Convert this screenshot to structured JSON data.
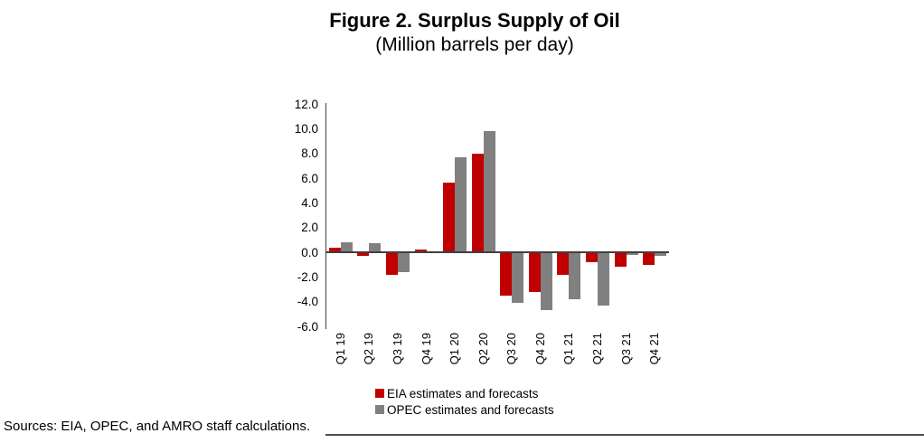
{
  "title": "Figure 2. Surplus Supply of Oil",
  "subtitle": "(Million barrels per day)",
  "source_note": "Sources: EIA, OPEC, and AMRO staff calculations.",
  "colors": {
    "eia": "#c00000",
    "opec": "#808080",
    "axis": "#404040",
    "footer_line": "#4d4d4d"
  },
  "legend": {
    "items": [
      {
        "label": "EIA estimates and forecasts",
        "series_key": "eia"
      },
      {
        "label": "OPEC estimates and forecasts",
        "series_key": "opec"
      }
    ]
  },
  "chart_data": {
    "type": "bar",
    "title": "Figure 2. Surplus Supply of Oil",
    "subtitle": "(Million barrels per day)",
    "categories": [
      "Q1 19",
      "Q2 19",
      "Q3 19",
      "Q4 19",
      "Q1 20",
      "Q2 20",
      "Q3 20",
      "Q4 20",
      "Q1 21",
      "Q2 21",
      "Q3 21",
      "Q4 21"
    ],
    "series": [
      {
        "name": "EIA estimates and forecasts",
        "color": "#c00000",
        "values": [
          0.4,
          -0.3,
          -1.8,
          0.2,
          5.6,
          8.0,
          -3.5,
          -3.2,
          -1.8,
          -0.8,
          -1.2,
          -1.0
        ]
      },
      {
        "name": "OPEC estimates and forecasts",
        "color": "#808080",
        "values": [
          0.8,
          0.7,
          -1.6,
          0.1,
          7.7,
          9.8,
          -4.1,
          -4.7,
          -3.8,
          -4.3,
          -0.2,
          -0.3
        ]
      }
    ],
    "ylim": [
      -6.0,
      12.0
    ],
    "yticks": [
      12.0,
      10.0,
      8.0,
      6.0,
      4.0,
      2.0,
      0.0,
      -2.0,
      -4.0,
      -6.0
    ],
    "ytick_format": "one_decimal",
    "xlabel": "",
    "ylabel": "",
    "grid": false,
    "legend_position": "bottom",
    "bar_orientation": "vertical",
    "x_labels_rotated_90": true
  }
}
